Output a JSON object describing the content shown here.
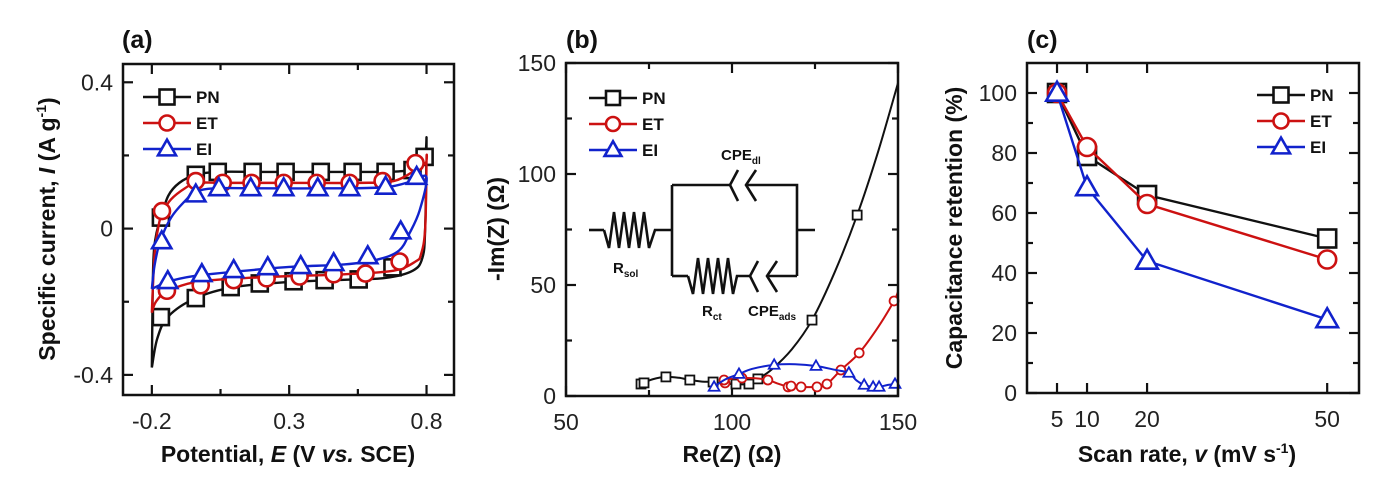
{
  "colors": {
    "PN": "#111111",
    "ET": "#cc1111",
    "EI": "#1122cc"
  },
  "chart_data": [
    {
      "panel_label": "(a)",
      "type": "line",
      "title": "",
      "xlabel": "Potential, E (V vs. SCE)",
      "xlabel_parts": [
        "Potential, ",
        "E",
        " (V ",
        "vs.",
        " SCE)"
      ],
      "ylabel": "Specific current, I (A g-1)",
      "ylabel_parts": [
        "Specific current, ",
        "I",
        " (A g",
        "-1",
        ")"
      ],
      "xlim": [
        -0.305,
        0.9
      ],
      "ylim": [
        -0.455,
        0.45
      ],
      "xticks": [
        -0.2,
        0.3,
        0.8
      ],
      "xtick_labels": [
        "-0.2",
        "0.3",
        "0.8"
      ],
      "xminor": [
        0.05,
        0.55
      ],
      "yticks": [
        -0.4,
        0,
        0.4
      ],
      "ytick_labels": [
        "-0.4",
        "0",
        "0.4"
      ],
      "yminor": [
        -0.2,
        0.2
      ],
      "grid": false,
      "legend": {
        "position": "top-left",
        "entries": [
          "PN",
          "ET",
          "EI"
        ]
      },
      "series": [
        {
          "name": "PN",
          "marker": "square",
          "curve_upper": [
            [
              -0.2,
              -0.38
            ],
            [
              -0.195,
              -0.1
            ],
            [
              -0.185,
              -0.02
            ],
            [
              -0.167,
              0.03
            ],
            [
              -0.14,
              0.09
            ],
            [
              -0.1,
              0.125
            ],
            [
              -0.04,
              0.147
            ],
            [
              0.04,
              0.155
            ],
            [
              0.2,
              0.155
            ],
            [
              0.4,
              0.155
            ],
            [
              0.6,
              0.155
            ],
            [
              0.72,
              0.158
            ],
            [
              0.77,
              0.175
            ],
            [
              0.795,
              0.2
            ],
            [
              0.8,
              0.24
            ]
          ],
          "curve_lower": [
            [
              0.8,
              0.24
            ],
            [
              0.795,
              0.0
            ],
            [
              0.785,
              -0.08
            ],
            [
              0.75,
              -0.115
            ],
            [
              0.65,
              -0.135
            ],
            [
              0.5,
              -0.14
            ],
            [
              0.3,
              -0.146
            ],
            [
              0.1,
              -0.16
            ],
            [
              -0.04,
              -0.19
            ],
            [
              -0.14,
              -0.24
            ],
            [
              -0.18,
              -0.3
            ],
            [
              -0.2,
              -0.38
            ]
          ],
          "markers": [
            [
              -0.167,
              0.03
            ],
            [
              -0.04,
              0.147
            ],
            [
              0.04,
              0.155
            ],
            [
              0.167,
              0.155
            ],
            [
              0.287,
              0.155
            ],
            [
              0.415,
              0.155
            ],
            [
              0.531,
              0.155
            ],
            [
              0.651,
              0.155
            ],
            [
              0.749,
              0.16
            ],
            [
              0.793,
              0.196
            ],
            [
              -0.167,
              -0.242
            ],
            [
              -0.04,
              -0.19
            ],
            [
              0.087,
              -0.16
            ],
            [
              0.193,
              -0.15
            ],
            [
              0.316,
              -0.144
            ],
            [
              0.429,
              -0.141
            ],
            [
              0.553,
              -0.139
            ],
            [
              0.676,
              -0.106
            ]
          ]
        },
        {
          "name": "ET",
          "marker": "circle",
          "curve_upper": [
            [
              -0.2,
              -0.23
            ],
            [
              -0.19,
              -0.07
            ],
            [
              -0.175,
              0.01
            ],
            [
              -0.16,
              0.045
            ],
            [
              -0.13,
              0.08
            ],
            [
              -0.08,
              0.11
            ],
            [
              -0.036,
              0.125
            ],
            [
              0.06,
              0.125
            ],
            [
              0.3,
              0.125
            ],
            [
              0.55,
              0.125
            ],
            [
              0.68,
              0.13
            ],
            [
              0.76,
              0.16
            ],
            [
              0.797,
              0.18
            ],
            [
              0.8,
              0.19
            ]
          ],
          "curve_lower": [
            [
              0.8,
              0.19
            ],
            [
              0.795,
              0.0
            ],
            [
              0.78,
              -0.07
            ],
            [
              0.76,
              -0.09
            ],
            [
              0.68,
              -0.115
            ],
            [
              0.5,
              -0.125
            ],
            [
              0.3,
              -0.13
            ],
            [
              0.1,
              -0.137
            ],
            [
              -0.04,
              -0.146
            ],
            [
              -0.145,
              -0.172
            ],
            [
              -0.185,
              -0.2
            ],
            [
              -0.2,
              -0.23
            ]
          ],
          "markers": [
            [
              -0.163,
              0.048
            ],
            [
              -0.04,
              0.13
            ],
            [
              0.058,
              0.125
            ],
            [
              0.163,
              0.125
            ],
            [
              0.28,
              0.125
            ],
            [
              0.4,
              0.125
            ],
            [
              0.52,
              0.125
            ],
            [
              0.64,
              0.13
            ],
            [
              0.76,
              0.179
            ],
            [
              -0.145,
              -0.17
            ],
            [
              -0.022,
              -0.155
            ],
            [
              0.098,
              -0.141
            ],
            [
              0.218,
              -0.136
            ],
            [
              0.338,
              -0.131
            ],
            [
              0.462,
              -0.125
            ],
            [
              0.578,
              -0.123
            ],
            [
              0.702,
              -0.09
            ]
          ]
        },
        {
          "name": "EI",
          "marker": "triangle",
          "curve_upper": [
            [
              -0.2,
              -0.165
            ],
            [
              -0.19,
              -0.1
            ],
            [
              -0.17,
              -0.035
            ],
            [
              -0.13,
              0.03
            ],
            [
              -0.08,
              0.075
            ],
            [
              -0.04,
              0.1
            ],
            [
              0.03,
              0.11
            ],
            [
              0.2,
              0.11
            ],
            [
              0.45,
              0.11
            ],
            [
              0.65,
              0.113
            ],
            [
              0.75,
              0.13
            ],
            [
              0.8,
              0.14
            ]
          ],
          "curve_lower": [
            [
              0.8,
              0.14
            ],
            [
              0.775,
              0.05
            ],
            [
              0.74,
              -0.01
            ],
            [
              0.7,
              -0.06
            ],
            [
              0.62,
              -0.085
            ],
            [
              0.5,
              -0.098
            ],
            [
              0.3,
              -0.105
            ],
            [
              0.1,
              -0.118
            ],
            [
              -0.05,
              -0.13
            ],
            [
              -0.14,
              -0.145
            ],
            [
              -0.2,
              -0.165
            ]
          ],
          "markers": [
            [
              -0.164,
              -0.035
            ],
            [
              -0.04,
              0.093
            ],
            [
              0.044,
              0.11
            ],
            [
              0.16,
              0.11
            ],
            [
              0.28,
              0.11
            ],
            [
              0.404,
              0.11
            ],
            [
              0.52,
              0.11
            ],
            [
              0.651,
              0.114
            ],
            [
              0.764,
              0.141
            ],
            [
              -0.142,
              -0.144
            ],
            [
              -0.018,
              -0.125
            ],
            [
              0.098,
              -0.114
            ],
            [
              0.222,
              -0.106
            ],
            [
              0.342,
              -0.103
            ],
            [
              0.462,
              -0.095
            ],
            [
              0.586,
              -0.076
            ],
            [
              0.706,
              -0.008
            ]
          ]
        }
      ]
    },
    {
      "panel_label": "(b)",
      "type": "line",
      "title": "",
      "xlabel": "Re(Z) (Ω)",
      "ylabel": "-Im(Z) (Ω)",
      "xlim": [
        50,
        150
      ],
      "ylim": [
        0,
        150
      ],
      "xticks": [
        50,
        100,
        150
      ],
      "xtick_labels": [
        "50",
        "100",
        "150"
      ],
      "xminor": [
        75,
        125
      ],
      "yticks": [
        0,
        50,
        100,
        150
      ],
      "ytick_labels": [
        "0",
        "50",
        "100",
        "150"
      ],
      "yminor": [
        25,
        75,
        125
      ],
      "grid": false,
      "legend": {
        "position": "top-left",
        "entries": [
          "PN",
          "ET",
          "EI"
        ]
      },
      "inset_circuit": {
        "labels": {
          "R_sol": [
            "R",
            "sol"
          ],
          "CPE_dl": [
            "CPE",
            "dl"
          ],
          "R_ct": [
            "R",
            "ct"
          ],
          "CPE_ads": [
            "CPE",
            "ads"
          ]
        }
      },
      "series": [
        {
          "name": "PN",
          "marker": "square-small",
          "x": [
            72.6,
            73.5,
            80.1,
            87.3,
            94.3,
            101.2,
            105.1,
            107.8,
            124.1,
            137.7
          ],
          "y": [
            5.4,
            5.9,
            8.6,
            7.2,
            6.3,
            5.4,
            5.4,
            7.7,
            34.2,
            81.5
          ],
          "curve": [
            [
              72.6,
              5.4
            ],
            [
              73.5,
              5.9
            ],
            [
              76,
              7.5
            ],
            [
              80.1,
              8.6
            ],
            [
              84,
              8.2
            ],
            [
              87.3,
              7.2
            ],
            [
              91,
              6.5
            ],
            [
              94.3,
              6.3
            ],
            [
              98,
              5.6
            ],
            [
              101.2,
              5.4
            ],
            [
              105.1,
              5.4
            ],
            [
              107.8,
              7.7
            ],
            [
              112,
              12
            ],
            [
              118,
              21
            ],
            [
              124.1,
              34.2
            ],
            [
              131,
              56
            ],
            [
              137.7,
              81.5
            ],
            [
              144,
              110
            ],
            [
              150,
              141
            ]
          ]
        },
        {
          "name": "ET",
          "marker": "circle-small",
          "x": [
            97.9,
            97.6,
            103.0,
            110.8,
            116.9,
            117.8,
            120.8,
            125.6,
            128.6,
            132.8,
            138.3,
            148.8
          ],
          "y": [
            5.9,
            7.2,
            8.1,
            7.2,
            4.1,
            4.5,
            4.1,
            4.1,
            5.4,
            11.7,
            19.4,
            42.8
          ],
          "curve": [
            [
              97.9,
              5.9
            ],
            [
              97.6,
              7.2
            ],
            [
              100,
              7.8
            ],
            [
              103,
              8.1
            ],
            [
              107,
              8.0
            ],
            [
              110.8,
              7.2
            ],
            [
              114,
              5.5
            ],
            [
              116.9,
              4.1
            ],
            [
              117.8,
              4.5
            ],
            [
              120.8,
              4.1
            ],
            [
              125.6,
              4.1
            ],
            [
              128.6,
              5.4
            ],
            [
              132.8,
              11.7
            ],
            [
              138.3,
              19.4
            ],
            [
              144,
              31
            ],
            [
              148.8,
              42.8
            ],
            [
              150,
              47
            ]
          ]
        },
        {
          "name": "EI",
          "marker": "triangle-small",
          "x": [
            94.6,
            102.1,
            112.7,
            125.3,
            135.2,
            139.8,
            142.5,
            144.3,
            149.1
          ],
          "y": [
            4.1,
            9.9,
            14.0,
            13.5,
            10.4,
            5.0,
            4.1,
            4.1,
            5.4
          ],
          "curve": [
            [
              94.6,
              4.1
            ],
            [
              98,
              7.5
            ],
            [
              102.1,
              9.9
            ],
            [
              106,
              12.2
            ],
            [
              112.7,
              14.0
            ],
            [
              119,
              14.3
            ],
            [
              125.3,
              13.5
            ],
            [
              131,
              11.8
            ],
            [
              135.2,
              10.4
            ],
            [
              137.5,
              7
            ],
            [
              139.8,
              5.0
            ],
            [
              142.5,
              4.1
            ],
            [
              144.3,
              4.1
            ],
            [
              147,
              5
            ],
            [
              149.1,
              5.4
            ],
            [
              150,
              5.4
            ]
          ]
        }
      ]
    },
    {
      "panel_label": "(c)",
      "type": "line",
      "title": "",
      "xlabel": "Scan rate, v (mV s-1)",
      "xlabel_parts": [
        "Scan rate, ",
        "v",
        " (mV s",
        "-1",
        ")"
      ],
      "ylabel": "Capacitance retention (%)",
      "xlim": [
        0,
        55.3
      ],
      "ylim": [
        0,
        110
      ],
      "xticks": [
        5,
        10,
        20,
        50
      ],
      "xtick_labels": [
        "5",
        "10",
        "20",
        "50"
      ],
      "yticks": [
        0,
        20,
        40,
        60,
        80,
        100
      ],
      "ytick_labels": [
        "0",
        "20",
        "40",
        "60",
        "80",
        "100"
      ],
      "yminor": [
        10,
        30,
        50,
        70,
        90
      ],
      "grid": false,
      "legend": {
        "position": "top-right",
        "entries": [
          "PN",
          "ET",
          "EI"
        ]
      },
      "categories": [
        5,
        10,
        20,
        50
      ],
      "series": [
        {
          "name": "PN",
          "marker": "square",
          "x": [
            5,
            10,
            20,
            50
          ],
          "values": [
            100,
            79,
            66,
            51.5
          ]
        },
        {
          "name": "ET",
          "marker": "circle",
          "x": [
            5,
            10,
            20,
            50
          ],
          "values": [
            100,
            82,
            63,
            44.5
          ]
        },
        {
          "name": "EI",
          "marker": "triangle",
          "x": [
            5,
            10,
            20,
            50
          ],
          "values": [
            100,
            68.5,
            44,
            24.5
          ]
        }
      ]
    }
  ]
}
